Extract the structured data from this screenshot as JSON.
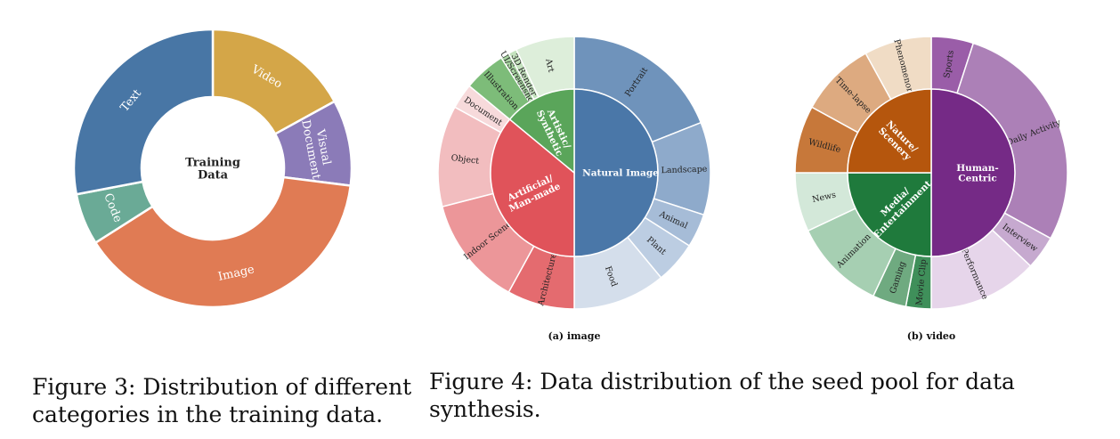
{
  "captions": {
    "figure3": "Figure 3: Distribution of different\ncategories in the training data.",
    "figure4": "Figure 4: Data distribution of the seed pool for data synthesis."
  },
  "chart_data": [
    {
      "id": "fig3",
      "type": "pie",
      "subtype": "donut",
      "center_label": "Training\nData",
      "slices": [
        {
          "label": "Video",
          "value": 17,
          "color": "#d4a648"
        },
        {
          "label": "Visual\nDocument",
          "value": 10,
          "color": "#8b7bb8"
        },
        {
          "label": "Image",
          "value": 39,
          "color": "#e07b54"
        },
        {
          "label": "Code",
          "value": 6,
          "color": "#6aaa96"
        },
        {
          "label": "Text",
          "value": 28,
          "color": "#4876a5"
        }
      ]
    },
    {
      "id": "fig4a",
      "type": "pie",
      "subtype": "sunburst",
      "subcaption": "(a) image",
      "inner": [
        {
          "label": "Natural Image",
          "value": 50,
          "color": "#4a77a8"
        },
        {
          "label": "Artificial/\nMan-made",
          "value": 36,
          "color": "#e0535a"
        },
        {
          "label": "Artistic/\nSynthetic",
          "value": 14,
          "color": "#5aa55a"
        }
      ],
      "outer": [
        {
          "label": "Portrait",
          "value": 19,
          "parent": "Natural Image",
          "color": "#6f93bb"
        },
        {
          "label": "Landscape",
          "value": 11,
          "parent": "Natural Image",
          "color": "#8eaacb"
        },
        {
          "label": "Animal",
          "value": 4,
          "parent": "Natural Image",
          "color": "#a6bcd7"
        },
        {
          "label": "Plant",
          "value": 5,
          "parent": "Natural Image",
          "color": "#bccde2"
        },
        {
          "label": "Food",
          "value": 11,
          "parent": "Natural Image",
          "color": "#d4deeb"
        },
        {
          "label": "Architecture",
          "value": 8,
          "parent": "Artificial/\nMan-made",
          "color": "#e46b6f"
        },
        {
          "label": "Indoor Scene",
          "value": 13,
          "parent": "Artificial/\nMan-made",
          "color": "#ec9699"
        },
        {
          "label": "Object",
          "value": 12,
          "parent": "Artificial/\nMan-made",
          "color": "#f2bdbf"
        },
        {
          "label": "Document",
          "value": 3,
          "parent": "Artificial/\nMan-made",
          "color": "#f7dadb"
        },
        {
          "label": "Illustration",
          "value": 5,
          "parent": "Artistic/\nSynthetic",
          "color": "#7dbc79"
        },
        {
          "label": "UI/Screenshot",
          "value": 1,
          "parent": "Artistic/\nSynthetic",
          "color": "#a8d4a2"
        },
        {
          "label": "3D Render",
          "value": 1,
          "parent": "Artistic/\nSynthetic",
          "color": "#c4e2be"
        },
        {
          "label": "Art",
          "value": 7,
          "parent": "Artistic/\nSynthetic",
          "color": "#ddeeda"
        }
      ]
    },
    {
      "id": "fig4b",
      "type": "pie",
      "subtype": "sunburst",
      "subcaption": "(b) video",
      "inner": [
        {
          "label": "Human-\nCentric",
          "value": 50,
          "color": "#752a86"
        },
        {
          "label": "Media/\nEntertainment",
          "value": 25,
          "color": "#1f7a3c"
        },
        {
          "label": "Nature/\nScenery",
          "value": 25,
          "color": "#b5560d"
        }
      ],
      "outer": [
        {
          "label": "Sports",
          "value": 5,
          "parent": "Human-\nCentric",
          "color": "#9a5da8"
        },
        {
          "label": "Daily Activity",
          "value": 28,
          "parent": "Human-\nCentric",
          "color": "#ac80b7"
        },
        {
          "label": "Interview",
          "value": 4,
          "parent": "Human-\nCentric",
          "color": "#c6a9cf"
        },
        {
          "label": "Performance",
          "value": 13,
          "parent": "Human-\nCentric",
          "color": "#e6d5ea"
        },
        {
          "label": "Movie Clip",
          "value": 3,
          "parent": "Media/\nEntertainment",
          "color": "#3f8f5a"
        },
        {
          "label": "Gaming",
          "value": 4,
          "parent": "Media/\nEntertainment",
          "color": "#6faa80"
        },
        {
          "label": "Animation",
          "value": 11,
          "parent": "Media/\nEntertainment",
          "color": "#a6cfb2"
        },
        {
          "label": "News",
          "value": 7,
          "parent": "Media/\nEntertainment",
          "color": "#d3e8d9"
        },
        {
          "label": "Wildlife",
          "value": 8,
          "parent": "Nature/\nScenery",
          "color": "#c7783a"
        },
        {
          "label": "Time-lapse",
          "value": 9,
          "parent": "Nature/\nScenery",
          "color": "#ddaa80"
        },
        {
          "label": "Phenomenon",
          "value": 8,
          "parent": "Nature/\nScenery",
          "color": "#f0dcc5"
        }
      ]
    }
  ]
}
